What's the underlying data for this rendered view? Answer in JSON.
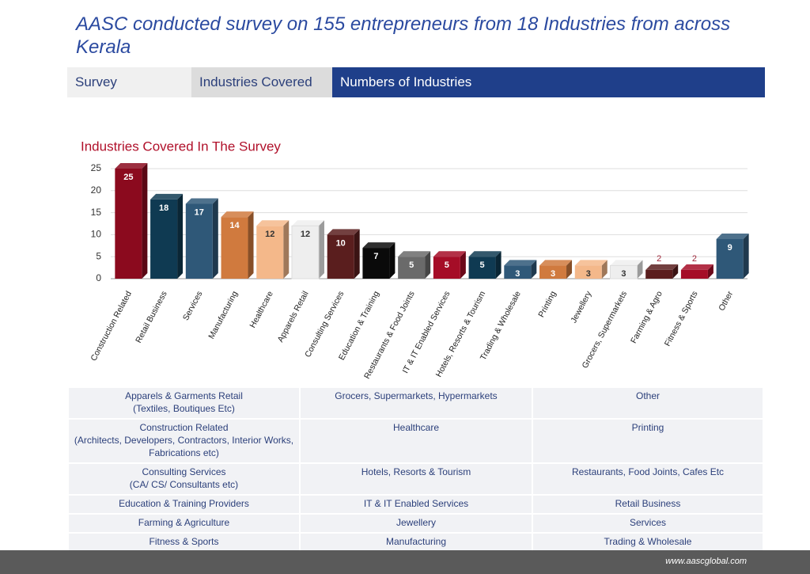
{
  "header": {
    "title_lines": [
      "AASC conducted survey on 155 entrepreneurs from 18 Industries from across",
      "Kerala"
    ]
  },
  "tabs": [
    "Survey",
    "Industries Covered",
    "Numbers of Industries"
  ],
  "chart_data": {
    "type": "bar",
    "title": "Industries Covered In The Survey",
    "categories": [
      "Construction Related",
      "Retail Business",
      "Services",
      "Manufacturing",
      "Healthcare",
      "Apparels Retail",
      "Consulting Services",
      "Education & Training",
      "Restaurants & Food Joints",
      "IT & IT Enabled Services",
      "Hotels, Resorts & Tourism",
      "Trading & Wholesale",
      "Printing",
      "Jewellery",
      "Grocers, Supermarkets",
      "Farming & Agro",
      "Fitness & Sports",
      "Other"
    ],
    "values": [
      25,
      18,
      17,
      14,
      12,
      12,
      10,
      7,
      5,
      5,
      5,
      3,
      3,
      3,
      3,
      2,
      2,
      9
    ],
    "colors": [
      "#8b0a1e",
      "#0f3a52",
      "#2f5878",
      "#d07a3e",
      "#f4b88a",
      "#eeeeee",
      "#5a1e1e",
      "#0a0a0a",
      "#6a6a6a",
      "#a50d27",
      "#0f3a52",
      "#2f5878",
      "#d07a3e",
      "#f4b88a",
      "#eeeeee",
      "#5a1e1e",
      "#a50d27",
      "#2f5878"
    ],
    "ylim": [
      0,
      25
    ],
    "yticks": [
      0,
      5,
      10,
      15,
      20,
      25
    ],
    "grid": true
  },
  "table": {
    "rows": [
      [
        [
          "Apparels & Garments Retail",
          "(Textiles, Boutiques Etc)"
        ],
        [
          "Grocers, Supermarkets, Hypermarkets"
        ],
        [
          "Other"
        ]
      ],
      [
        [
          "Construction Related",
          "(Architects, Developers, Contractors, Interior Works,",
          "Fabrications etc)"
        ],
        [
          "Healthcare"
        ],
        [
          "Printing"
        ]
      ],
      [
        [
          "Consulting Services",
          "(CA/ CS/ Consultants etc)"
        ],
        [
          "Hotels, Resorts & Tourism"
        ],
        [
          "Restaurants, Food Joints, Cafes Etc"
        ]
      ],
      [
        [
          "Education & Training Providers"
        ],
        [
          "IT & IT Enabled Services"
        ],
        [
          "Retail Business"
        ]
      ],
      [
        [
          "Farming & Agriculture"
        ],
        [
          "Jewellery"
        ],
        [
          "Services"
        ]
      ],
      [
        [
          "Fitness & Sports"
        ],
        [
          "Manufacturing"
        ],
        [
          "Trading & Wholesale"
        ]
      ]
    ]
  },
  "footer": {
    "url": "www.aascglobal.com"
  }
}
